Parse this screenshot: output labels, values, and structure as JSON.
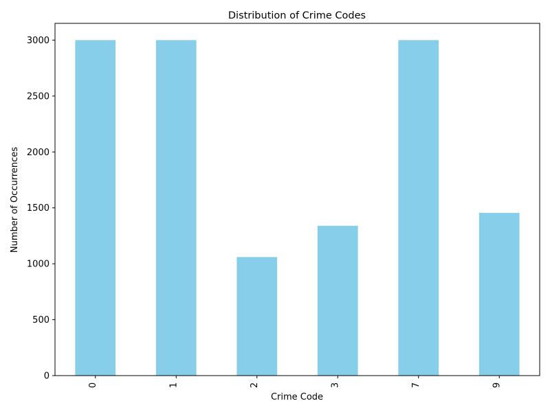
{
  "chart_data": {
    "type": "bar",
    "title": "Distribution of Crime Codes",
    "xlabel": "Crime Code",
    "ylabel": "Number of Occurrences",
    "categories": [
      "0",
      "1",
      "2",
      "3",
      "7",
      "9"
    ],
    "values": [
      3000,
      3000,
      1060,
      1340,
      3000,
      1455
    ],
    "ylim": [
      0,
      3150
    ],
    "yticks": [
      0,
      500,
      1000,
      1500,
      2000,
      2500,
      3000
    ],
    "grid": false,
    "bar_color": "#87ceeb"
  }
}
